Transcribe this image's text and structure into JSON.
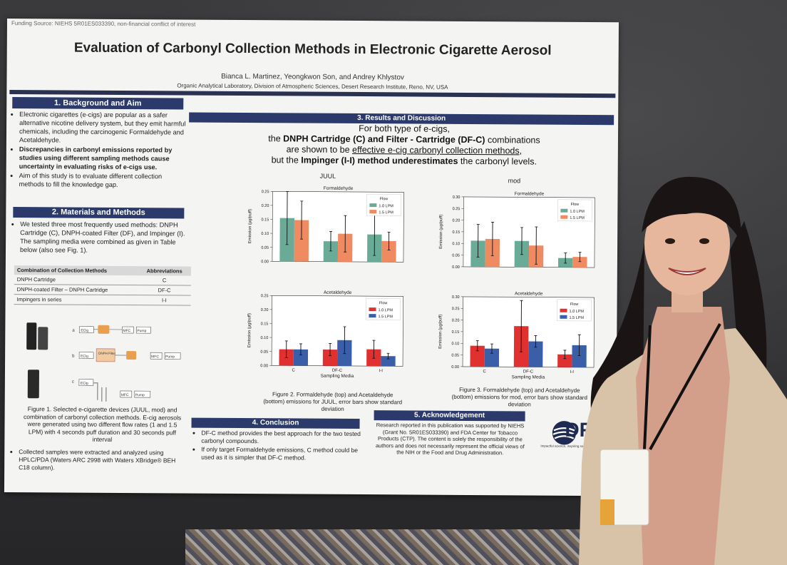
{
  "poster": {
    "funding": "Funding Source: NIEHS 5R01ES033390, non-financial conflict of interest",
    "title": "Evaluation of Carbonyl Collection Methods in Electronic Cigarette Aerosol",
    "authors": "Bianca L. Martinez, Yeongkwon Son, and Andrey Khlystov",
    "affiliation": "Organic Analytical Laboratory, Division of Atmospheric Sciences, Desert Research Institute, Reno, NV, USA",
    "sections": {
      "background": {
        "heading": "1. Background and Aim",
        "bullets": [
          "Electronic cigarettes (e-cigs) are popular as a safer alternative nicotine delivery system, but they emit harmful chemicals, including the carcinogenic Formaldehyde and Acetaldehyde.",
          "Discrepancies in carbonyl emissions reported by studies using different sampling methods cause uncertainty in evaluating risks of e-cigs use.",
          "Aim of this study is to evaluate different collection methods to fill the knowledge gap."
        ]
      },
      "methods": {
        "heading": "2. Materials and Methods",
        "intro": "We tested three most frequently used methods: DNPH Cartridge (C), DNPH-coated Filter (DF), and Impinger (I). The sampling media were combined as given in Table below (also see Fig. 1).",
        "table": {
          "headers": [
            "Combination of Collection Methods",
            "Abbreviations"
          ],
          "rows": [
            [
              "DNPH Cartridge",
              "C"
            ],
            [
              "DNPH-coated Filter – DNPH Cartridge",
              "DF-C"
            ],
            [
              "Impingers in series",
              "I-I"
            ]
          ]
        },
        "diagram_labels": {
          "row_a": "a",
          "row_b": "b",
          "row_c": "c",
          "ecig": "ECig",
          "mfc": "MFC",
          "pump": "Pump",
          "dnph_filter": "DNPH Filter"
        },
        "figure1_caption": "Figure 1. Selected e-cigarette devices (JUUL, mod) and combination of carbonyl collection methods. E-cig aerosols were generated using two different flow rates (1 and 1.5 LPM) with 4 seconds puff duration and 30 seconds puff interval",
        "collected": "Collected samples were extracted and analyzed using HPLC/PDA (Waters ARC 2998 with Waters XBridge® BEH C18 column)."
      },
      "results": {
        "heading": "3. Results and Discussion",
        "line1": "For both type of e-cigs,",
        "line2_pre": "the ",
        "line2_bold": "DNPH Cartridge (C) and Filter - Cartridge (DF-C)",
        "line2_post": " combinations",
        "line3_pre": "are shown to be ",
        "line3_u": "effective e-cig carbonyl collection methods",
        "line3_post": ",",
        "line4_pre": "but the ",
        "line4_bold": "Impinger (I-I) method underestimates",
        "line4_post": " the carbonyl levels.",
        "juul_label": "JUUL",
        "mod_label": "mod",
        "fig2_caption": "Figure 2. Formaldehyde (top) and Acetaldehyde (bottom) emissions for JUUL, error bars show standard deviation",
        "fig3_caption": "Figure 3. Formaldehyde (top) and Acetaldehyde (bottom) emissions for mod, error bars show standard deviation"
      },
      "conclusion": {
        "heading": "4. Conclusion",
        "bullets": [
          "DF-C method provides the best approach for the two tested carbonyl compounds.",
          "If only target Formaldehyde emissions, C method could be used as it is simpler that DF-C method."
        ]
      },
      "acknowledgement": {
        "heading": "5. Acknowledgement",
        "text": "Research reported in this publication was supported by NIEHS (Grant No. 5R01ES033390) and FDA Center for Tobacco Products (CTP). The content is solely the responsibility of the authors and does not necessarily represent the official views of the NIH or the Food and Drug Administration."
      }
    },
    "logo": {
      "text": "DRI",
      "tagline": "Impactful science, inspiring solutions."
    }
  },
  "colors": {
    "heading_bg": "#2b3a6a",
    "form_1_0": "#6aab98",
    "form_1_5": "#f08a60",
    "acet_1_0": "#e03030",
    "acet_1_5": "#3a5fa8"
  },
  "chart_data": [
    {
      "id": "juul_formaldehyde",
      "type": "bar",
      "title": "Formaldehyde",
      "xlabel": "",
      "ylabel": "Emission (µg/puff)",
      "ylim": [
        0,
        0.25
      ],
      "yticks": [
        "0.00",
        "0.05",
        "0.10",
        "0.15",
        "0.20",
        "0.25"
      ],
      "categories": [
        "C",
        "DF-C",
        "I-I"
      ],
      "legend_title": "Flow",
      "legend_position": "top-right",
      "series": [
        {
          "name": "1.0 LPM",
          "color": "#6aab98",
          "values": [
            0.155,
            0.073,
            0.098
          ],
          "err": [
            0.095,
            0.035,
            0.075
          ]
        },
        {
          "name": "1.5 LPM",
          "color": "#f08a60",
          "values": [
            0.148,
            0.1,
            0.075
          ],
          "err": [
            0.068,
            0.065,
            0.032
          ]
        }
      ]
    },
    {
      "id": "juul_acetaldehyde",
      "type": "bar",
      "title": "Acetaldehyde",
      "xlabel": "Sampling Media",
      "ylabel": "Emission (µg/puff)",
      "ylim": [
        0,
        0.25
      ],
      "yticks": [
        "0.00",
        "0.05",
        "0.10",
        "0.15",
        "0.20",
        "0.25"
      ],
      "categories": [
        "C",
        "DF-C",
        "I-I"
      ],
      "legend_title": "Flow",
      "legend_position": "top-right",
      "series": [
        {
          "name": "1.0 LPM",
          "color": "#e03030",
          "values": [
            0.058,
            0.058,
            0.06
          ],
          "err": [
            0.03,
            0.022,
            0.032
          ]
        },
        {
          "name": "1.5 LPM",
          "color": "#3a5fa8",
          "values": [
            0.058,
            0.092,
            0.036
          ],
          "err": [
            0.02,
            0.048,
            0.01
          ]
        }
      ]
    },
    {
      "id": "mod_formaldehyde",
      "type": "bar",
      "title": "Formaldehyde",
      "xlabel": "",
      "ylabel": "Emission (µg/puff)",
      "ylim": [
        0,
        0.3
      ],
      "yticks": [
        "0.00",
        "0.05",
        "0.10",
        "0.15",
        "0.20",
        "0.25",
        "0.30"
      ],
      "categories": [
        "C",
        "DF-C",
        "I-I"
      ],
      "legend_title": "Flow",
      "legend_position": "top-right",
      "series": [
        {
          "name": "1.0 LPM",
          "color": "#6aab98",
          "values": [
            0.112,
            0.112,
            0.04
          ],
          "err": [
            0.07,
            0.058,
            0.022
          ]
        },
        {
          "name": "1.5 LPM",
          "color": "#f08a60",
          "values": [
            0.12,
            0.093,
            0.045
          ],
          "err": [
            0.072,
            0.08,
            0.02
          ]
        }
      ]
    },
    {
      "id": "mod_acetaldehyde",
      "type": "bar",
      "title": "Acetaldehyde",
      "xlabel": "Sampling Media",
      "ylabel": "Emission (µg/puff)",
      "ylim": [
        0,
        0.3
      ],
      "yticks": [
        "0.00",
        "0.05",
        "0.10",
        "0.15",
        "0.20",
        "0.25",
        "0.30"
      ],
      "categories": [
        "C",
        "DF-C",
        "I-I"
      ],
      "legend_title": "Flow",
      "legend_position": "top-right",
      "series": [
        {
          "name": "1.0 LPM",
          "color": "#e03030",
          "values": [
            0.09,
            0.175,
            0.055
          ],
          "err": [
            0.022,
            0.11,
            0.018
          ]
        },
        {
          "name": "1.5 LPM",
          "color": "#3a5fa8",
          "values": [
            0.078,
            0.11,
            0.095
          ],
          "err": [
            0.02,
            0.025,
            0.045
          ]
        }
      ]
    }
  ]
}
